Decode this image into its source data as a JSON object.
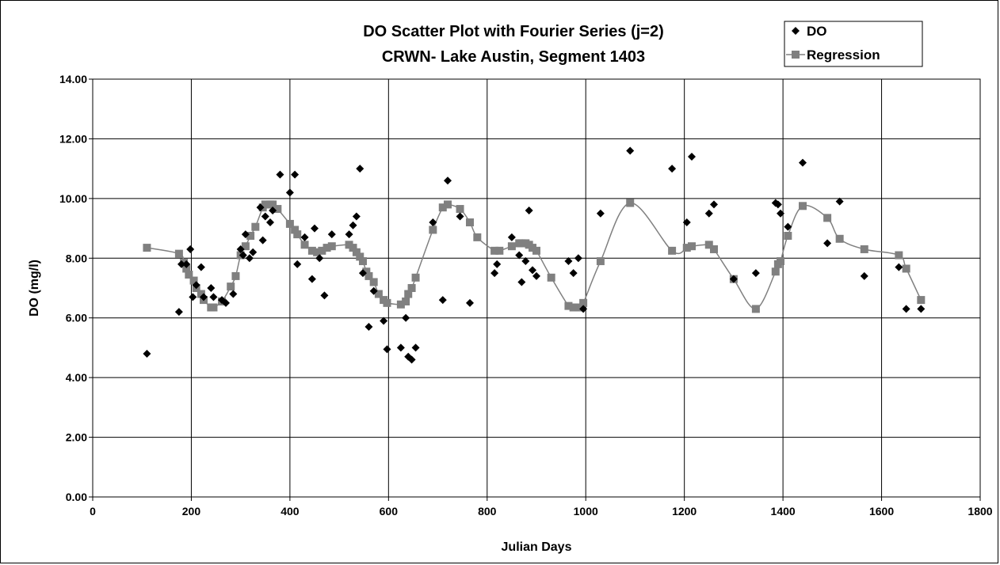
{
  "chart_data": {
    "type": "scatter",
    "title": "DO Scatter Plot with Fourier Series (j=2)",
    "subtitle": "CRWN- Lake Austin, Segment 1403",
    "xlabel": "Julian Days",
    "ylabel": "DO (mg/l)",
    "xlim": [
      0,
      1800
    ],
    "ylim": [
      0,
      14
    ],
    "xticks": [
      "0",
      "200",
      "400",
      "600",
      "800",
      "1000",
      "1200",
      "1400",
      "1600",
      "1800"
    ],
    "yticks": [
      "0.00",
      "2.00",
      "4.00",
      "6.00",
      "8.00",
      "10.00",
      "12.00",
      "14.00"
    ],
    "grid": true,
    "legend_position": "top-right",
    "colors": {
      "do": "#000000",
      "regression": "#808080"
    },
    "series": [
      {
        "name": "DO",
        "marker": "diamond",
        "points": [
          [
            110,
            4.8
          ],
          [
            175,
            6.2
          ],
          [
            180,
            7.8
          ],
          [
            190,
            7.8
          ],
          [
            198,
            8.3
          ],
          [
            203,
            6.7
          ],
          [
            210,
            7.1
          ],
          [
            220,
            7.7
          ],
          [
            225,
            6.7
          ],
          [
            240,
            7.0
          ],
          [
            245,
            6.7
          ],
          [
            262,
            6.6
          ],
          [
            270,
            6.5
          ],
          [
            285,
            6.8
          ],
          [
            300,
            8.3
          ],
          [
            305,
            8.1
          ],
          [
            310,
            8.8
          ],
          [
            318,
            8.0
          ],
          [
            325,
            8.2
          ],
          [
            340,
            9.7
          ],
          [
            345,
            8.6
          ],
          [
            350,
            9.4
          ],
          [
            360,
            9.2
          ],
          [
            365,
            9.6
          ],
          [
            380,
            10.8
          ],
          [
            400,
            10.2
          ],
          [
            410,
            10.8
          ],
          [
            415,
            7.8
          ],
          [
            430,
            8.7
          ],
          [
            445,
            7.3
          ],
          [
            450,
            9.0
          ],
          [
            460,
            8.0
          ],
          [
            470,
            6.75
          ],
          [
            485,
            8.8
          ],
          [
            520,
            8.8
          ],
          [
            528,
            9.1
          ],
          [
            535,
            9.4
          ],
          [
            542,
            11.0
          ],
          [
            548,
            7.5
          ],
          [
            560,
            5.7
          ],
          [
            570,
            6.9
          ],
          [
            590,
            5.9
          ],
          [
            597,
            4.95
          ],
          [
            625,
            5.0
          ],
          [
            635,
            6.0
          ],
          [
            640,
            4.7
          ],
          [
            647,
            4.6
          ],
          [
            655,
            5.0
          ],
          [
            690,
            9.2
          ],
          [
            710,
            6.6
          ],
          [
            720,
            10.6
          ],
          [
            745,
            9.4
          ],
          [
            765,
            6.5
          ],
          [
            815,
            7.5
          ],
          [
            820,
            7.8
          ],
          [
            850,
            8.7
          ],
          [
            865,
            8.1
          ],
          [
            870,
            7.2
          ],
          [
            878,
            7.9
          ],
          [
            885,
            9.6
          ],
          [
            892,
            7.6
          ],
          [
            900,
            7.4
          ],
          [
            965,
            7.9
          ],
          [
            975,
            7.5
          ],
          [
            985,
            8.0
          ],
          [
            995,
            6.3
          ],
          [
            1030,
            9.5
          ],
          [
            1090,
            11.6
          ],
          [
            1175,
            11.0
          ],
          [
            1205,
            9.2
          ],
          [
            1215,
            11.4
          ],
          [
            1250,
            9.5
          ],
          [
            1260,
            9.8
          ],
          [
            1300,
            7.3
          ],
          [
            1345,
            7.5
          ],
          [
            1385,
            9.85
          ],
          [
            1390,
            9.8
          ],
          [
            1395,
            9.5
          ],
          [
            1410,
            9.05
          ],
          [
            1440,
            11.2
          ],
          [
            1490,
            8.5
          ],
          [
            1515,
            9.9
          ],
          [
            1565,
            7.4
          ],
          [
            1635,
            7.7
          ],
          [
            1650,
            6.3
          ],
          [
            1680,
            6.3
          ]
        ]
      },
      {
        "name": "Regression",
        "marker": "square",
        "points": [
          [
            110,
            8.35
          ],
          [
            175,
            8.15
          ],
          [
            185,
            7.85
          ],
          [
            190,
            7.65
          ],
          [
            195,
            7.45
          ],
          [
            205,
            7.25
          ],
          [
            210,
            7.0
          ],
          [
            220,
            6.8
          ],
          [
            225,
            6.6
          ],
          [
            240,
            6.35
          ],
          [
            245,
            6.35
          ],
          [
            262,
            6.55
          ],
          [
            280,
            7.05
          ],
          [
            290,
            7.4
          ],
          [
            300,
            8.1
          ],
          [
            310,
            8.4
          ],
          [
            320,
            8.75
          ],
          [
            330,
            9.05
          ],
          [
            345,
            9.7
          ],
          [
            350,
            9.8
          ],
          [
            360,
            9.8
          ],
          [
            365,
            9.8
          ],
          [
            375,
            9.65
          ],
          [
            400,
            9.15
          ],
          [
            410,
            8.95
          ],
          [
            415,
            8.8
          ],
          [
            430,
            8.45
          ],
          [
            445,
            8.25
          ],
          [
            455,
            8.2
          ],
          [
            465,
            8.25
          ],
          [
            475,
            8.35
          ],
          [
            485,
            8.4
          ],
          [
            520,
            8.45
          ],
          [
            528,
            8.35
          ],
          [
            535,
            8.2
          ],
          [
            542,
            8.05
          ],
          [
            548,
            7.9
          ],
          [
            555,
            7.55
          ],
          [
            560,
            7.4
          ],
          [
            570,
            7.2
          ],
          [
            580,
            6.8
          ],
          [
            590,
            6.6
          ],
          [
            597,
            6.5
          ],
          [
            625,
            6.45
          ],
          [
            635,
            6.55
          ],
          [
            640,
            6.8
          ],
          [
            647,
            7.0
          ],
          [
            655,
            7.35
          ],
          [
            690,
            8.95
          ],
          [
            710,
            9.7
          ],
          [
            720,
            9.8
          ],
          [
            745,
            9.65
          ],
          [
            765,
            9.2
          ],
          [
            780,
            8.7
          ],
          [
            815,
            8.25
          ],
          [
            825,
            8.25
          ],
          [
            850,
            8.4
          ],
          [
            865,
            8.5
          ],
          [
            870,
            8.5
          ],
          [
            878,
            8.5
          ],
          [
            885,
            8.45
          ],
          [
            892,
            8.35
          ],
          [
            900,
            8.25
          ],
          [
            930,
            7.35
          ],
          [
            965,
            6.4
          ],
          [
            975,
            6.35
          ],
          [
            985,
            6.35
          ],
          [
            995,
            6.5
          ],
          [
            1030,
            7.9
          ],
          [
            1090,
            9.85
          ],
          [
            1175,
            8.25
          ],
          [
            1205,
            8.35
          ],
          [
            1215,
            8.4
          ],
          [
            1250,
            8.45
          ],
          [
            1260,
            8.3
          ],
          [
            1300,
            7.3
          ],
          [
            1345,
            6.3
          ],
          [
            1385,
            7.55
          ],
          [
            1390,
            7.8
          ],
          [
            1395,
            7.9
          ],
          [
            1410,
            8.75
          ],
          [
            1440,
            9.75
          ],
          [
            1490,
            9.35
          ],
          [
            1515,
            8.65
          ],
          [
            1565,
            8.3
          ],
          [
            1635,
            8.1
          ],
          [
            1650,
            7.65
          ],
          [
            1680,
            6.6
          ]
        ]
      }
    ]
  }
}
